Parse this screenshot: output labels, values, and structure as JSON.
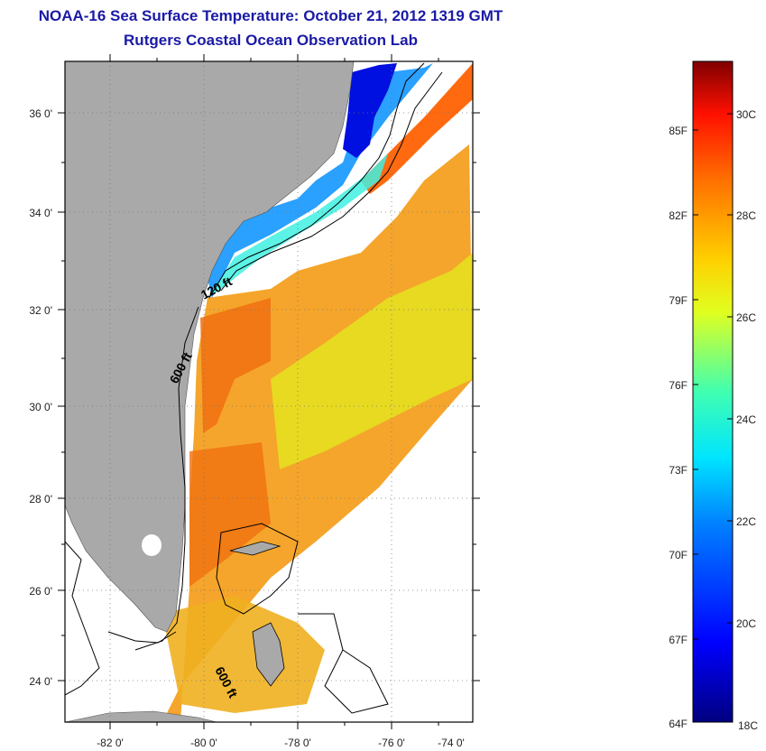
{
  "title": {
    "line1": "NOAA-16 Sea Surface Temperature:  October 21, 2012 1319 GMT",
    "line2": "Rutgers Coastal Ocean Observation Lab"
  },
  "map": {
    "lon_ticks": [
      "-82 0'",
      "-80 0'",
      "-78 0'",
      "-76 0'",
      "-74 0'"
    ],
    "lat_ticks": [
      "36 0'",
      "34 0'",
      "32 0'",
      "30 0'",
      "28 0'",
      "26 0'",
      "24 0'"
    ],
    "contour_labels": [
      "120 ft",
      "600 ft",
      "600 ft"
    ],
    "colors": {
      "land": "#a9a9a9",
      "cloud": "#ffffff"
    }
  },
  "colorbar": {
    "fahrenheit": [
      "85F",
      "82F",
      "79F",
      "76F",
      "73F",
      "70F",
      "67F",
      "64F"
    ],
    "celsius": [
      "30C",
      "28C",
      "26C",
      "24C",
      "22C",
      "20C",
      "18C"
    ]
  }
}
